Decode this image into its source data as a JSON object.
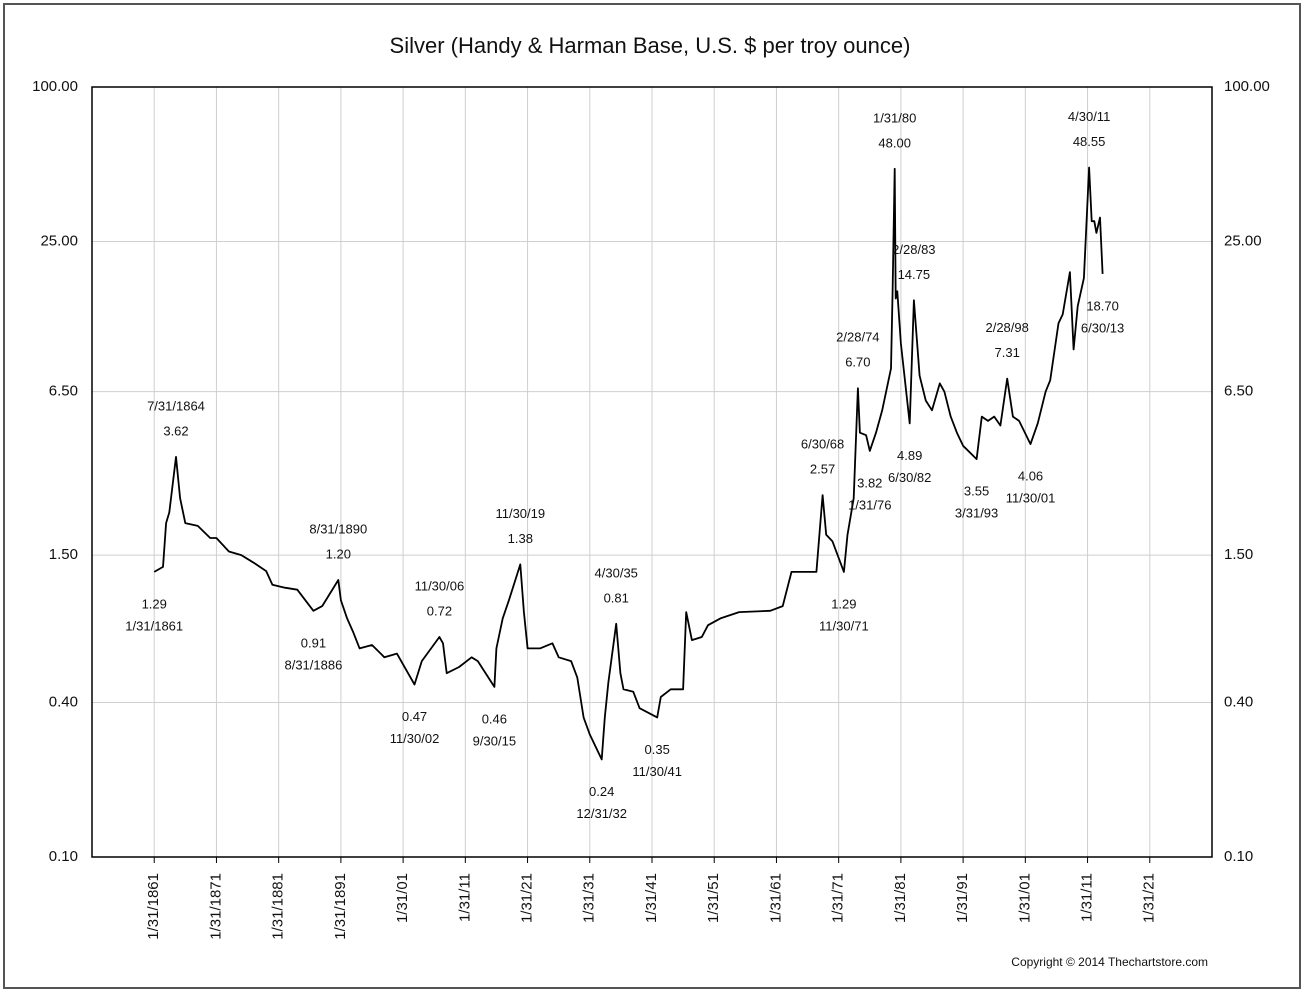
{
  "chart_data": {
    "type": "line",
    "title": "Silver (Handy & Harman Base, U.S. $ per troy ounce)",
    "copyright": "Copyright © 2014 Thechartstore.com",
    "log_scale": true,
    "grid": true,
    "color": "#000000",
    "xlim": [
      "1851-01",
      "2031-01"
    ],
    "xticks": [
      {
        "value": "1861-01",
        "label": "1/31/1861"
      },
      {
        "value": "1871-01",
        "label": "1/31/1871"
      },
      {
        "value": "1881-01",
        "label": "1/31/1881"
      },
      {
        "value": "1891-01",
        "label": "1/31/1891"
      },
      {
        "value": "1901-01",
        "label": "1/31/01"
      },
      {
        "value": "1911-01",
        "label": "1/31/11"
      },
      {
        "value": "1921-01",
        "label": "1/31/21"
      },
      {
        "value": "1931-01",
        "label": "1/31/31"
      },
      {
        "value": "1941-01",
        "label": "1/31/41"
      },
      {
        "value": "1951-01",
        "label": "1/31/51"
      },
      {
        "value": "1961-01",
        "label": "1/31/61"
      },
      {
        "value": "1971-01",
        "label": "1/31/71"
      },
      {
        "value": "1981-01",
        "label": "1/31/81"
      },
      {
        "value": "1991-01",
        "label": "1/31/91"
      },
      {
        "value": "2001-01",
        "label": "1/31/01"
      },
      {
        "value": "2011-01",
        "label": "1/31/11"
      },
      {
        "value": "2021-01",
        "label": "1/31/21"
      }
    ],
    "ylim": [
      0.1,
      100
    ],
    "yticks": [
      {
        "value": 0.1,
        "label": "0.10"
      },
      {
        "value": 0.4,
        "label": "0.40"
      },
      {
        "value": 1.5,
        "label": "1.50"
      },
      {
        "value": 6.5,
        "label": "6.50"
      },
      {
        "value": 25,
        "label": "25.00"
      },
      {
        "value": 100,
        "label": "100.00"
      }
    ],
    "x": [
      "1861-01",
      "1862-06",
      "1862-12",
      "1863-06",
      "1864-07",
      "1865-03",
      "1866-01",
      "1868-01",
      "1870-01",
      "1871-01",
      "1873-01",
      "1875-01",
      "1877-01",
      "1879-01",
      "1880-01",
      "1882-01",
      "1884-01",
      "1886-08",
      "1888-01",
      "1890-08",
      "1891-01",
      "1892-01",
      "1893-01",
      "1894-01",
      "1896-01",
      "1898-01",
      "1900-01",
      "1902-11",
      "1904-01",
      "1906-11",
      "1907-06",
      "1908-01",
      "1910-01",
      "1912-01",
      "1913-01",
      "1915-09",
      "1916-01",
      "1917-01",
      "1918-01",
      "1919-11",
      "1920-06",
      "1921-01",
      "1923-01",
      "1925-01",
      "1926-01",
      "1928-01",
      "1929-01",
      "1930-01",
      "1931-01",
      "1932-12",
      "1933-06",
      "1934-01",
      "1935-04",
      "1935-12",
      "1936-06",
      "1938-01",
      "1939-01",
      "1941-11",
      "1942-06",
      "1944-01",
      "1946-01",
      "1946-07",
      "1947-06",
      "1949-01",
      "1950-01",
      "1952-01",
      "1955-01",
      "1960-01",
      "1962-01",
      "1963-06",
      "1967-06",
      "1968-06",
      "1969-01",
      "1970-01",
      "1971-11",
      "1972-06",
      "1973-06",
      "1974-02",
      "1974-06",
      "1975-06",
      "1976-01",
      "1977-01",
      "1978-01",
      "1979-06",
      "1979-09",
      "1980-01",
      "1980-03",
      "1980-06",
      "1981-01",
      "1982-06",
      "1983-02",
      "1984-01",
      "1985-01",
      "1986-01",
      "1987-04",
      "1988-01",
      "1989-01",
      "1990-01",
      "1991-01",
      "1993-03",
      "1994-01",
      "1995-01",
      "1996-01",
      "1997-01",
      "1998-02",
      "1999-01",
      "2000-01",
      "2001-11",
      "2003-01",
      "2004-04",
      "2005-01",
      "2006-05",
      "2007-01",
      "2008-03",
      "2008-10",
      "2009-06",
      "2010-06",
      "2011-04",
      "2011-09",
      "2012-02",
      "2012-06",
      "2013-01",
      "2013-06"
    ],
    "values": [
      1.29,
      1.35,
      2.0,
      2.2,
      3.62,
      2.5,
      2.0,
      1.95,
      1.75,
      1.75,
      1.55,
      1.5,
      1.4,
      1.3,
      1.15,
      1.12,
      1.1,
      0.91,
      0.95,
      1.2,
      1.0,
      0.85,
      0.75,
      0.65,
      0.67,
      0.6,
      0.62,
      0.47,
      0.58,
      0.72,
      0.68,
      0.52,
      0.55,
      0.6,
      0.58,
      0.46,
      0.65,
      0.85,
      1.0,
      1.38,
      0.9,
      0.65,
      0.65,
      0.68,
      0.6,
      0.58,
      0.5,
      0.35,
      0.3,
      0.24,
      0.35,
      0.48,
      0.81,
      0.52,
      0.45,
      0.44,
      0.38,
      0.35,
      0.42,
      0.45,
      0.45,
      0.9,
      0.7,
      0.72,
      0.8,
      0.85,
      0.9,
      0.91,
      0.95,
      1.29,
      1.29,
      2.57,
      1.8,
      1.7,
      1.29,
      1.8,
      2.5,
      6.7,
      4.5,
      4.4,
      3.82,
      4.5,
      5.5,
      8,
      16,
      48,
      15,
      16,
      10,
      4.89,
      14.75,
      7.5,
      6.0,
      5.5,
      7,
      6.5,
      5.2,
      4.5,
      4.0,
      3.55,
      5.2,
      5.0,
      5.2,
      4.8,
      7.31,
      5.2,
      5.0,
      4.06,
      4.9,
      6.5,
      7.2,
      12,
      13,
      19,
      9.5,
      14,
      18,
      48.55,
      30,
      30,
      27,
      31,
      18.7
    ],
    "annotations": [
      {
        "x": "1861-01",
        "date": "1/31/1861",
        "value": 1.29,
        "label": "1.29",
        "kind": "trough"
      },
      {
        "x": "1864-07",
        "date": "7/31/1864",
        "value": 3.62,
        "label": "3.62",
        "kind": "peak"
      },
      {
        "x": "1886-08",
        "date": "8/31/1886",
        "value": 0.91,
        "label": "0.91",
        "kind": "trough"
      },
      {
        "x": "1890-08",
        "date": "8/31/1890",
        "value": 1.2,
        "label": "1.20",
        "kind": "peak"
      },
      {
        "x": "1902-11",
        "date": "11/30/02",
        "value": 0.47,
        "label": "0.47",
        "kind": "trough"
      },
      {
        "x": "1906-11",
        "date": "11/30/06",
        "value": 0.72,
        "label": "0.72",
        "kind": "peak"
      },
      {
        "x": "1915-09",
        "date": "9/30/15",
        "value": 0.46,
        "label": "0.46",
        "kind": "trough"
      },
      {
        "x": "1919-11",
        "date": "11/30/19",
        "value": 1.38,
        "label": "1.38",
        "kind": "peak"
      },
      {
        "x": "1932-12",
        "date": "12/31/32",
        "value": 0.24,
        "label": "0.24",
        "kind": "trough"
      },
      {
        "x": "1935-04",
        "date": "4/30/35",
        "value": 0.81,
        "label": "0.81",
        "kind": "peak"
      },
      {
        "x": "1941-11",
        "date": "11/30/41",
        "value": 0.35,
        "label": "0.35",
        "kind": "trough"
      },
      {
        "x": "1968-06",
        "date": "6/30/68",
        "value": 2.57,
        "label": "2.57",
        "kind": "peak"
      },
      {
        "x": "1971-11",
        "date": "11/30/71",
        "value": 1.29,
        "label": "1.29",
        "kind": "trough"
      },
      {
        "x": "1974-02",
        "date": "2/28/74",
        "value": 6.7,
        "label": "6.70",
        "kind": "peak"
      },
      {
        "x": "1976-01",
        "date": "1/31/76",
        "value": 3.82,
        "label": "3.82",
        "kind": "trough"
      },
      {
        "x": "1980-01",
        "date": "1/31/80",
        "value": 48,
        "label": "48.00",
        "kind": "peak"
      },
      {
        "x": "1982-06",
        "date": "6/30/82",
        "value": 4.89,
        "label": "4.89",
        "kind": "trough"
      },
      {
        "x": "1983-02",
        "date": "2/28/83",
        "value": 14.75,
        "label": "14.75",
        "kind": "peak"
      },
      {
        "x": "1993-03",
        "date": "3/31/93",
        "value": 3.55,
        "label": "3.55",
        "kind": "trough"
      },
      {
        "x": "1998-02",
        "date": "2/28/98",
        "value": 7.31,
        "label": "7.31",
        "kind": "peak"
      },
      {
        "x": "2001-11",
        "date": "11/30/01",
        "value": 4.06,
        "label": "4.06",
        "kind": "trough"
      },
      {
        "x": "2011-04",
        "date": "4/30/11",
        "value": 48.55,
        "label": "48.55",
        "kind": "peak"
      },
      {
        "x": "2013-06",
        "date": "6/30/13",
        "value": 18.7,
        "label": "18.70",
        "kind": "trough"
      }
    ]
  }
}
